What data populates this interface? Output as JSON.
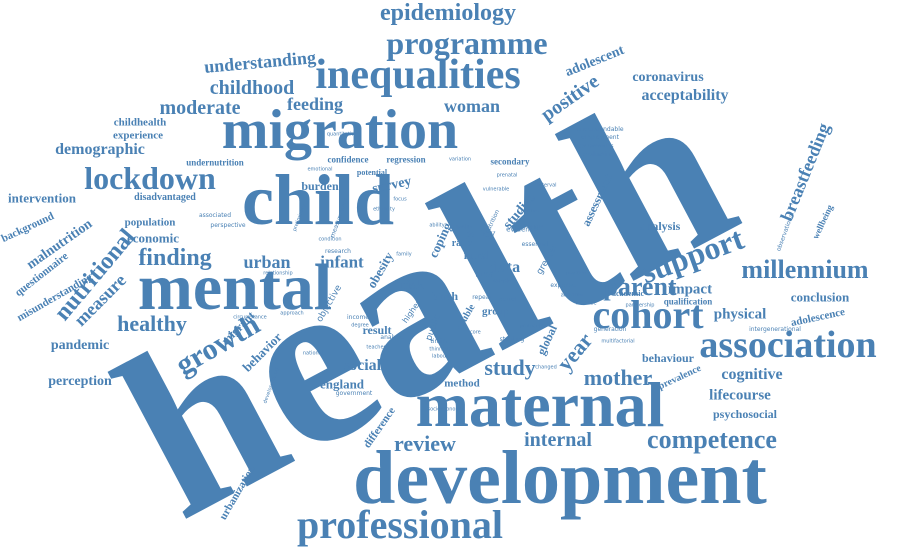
{
  "color": "#4a81b4",
  "words": [
    {
      "text": "health",
      "orient": "rotated"
    },
    {
      "text": "development",
      "orient": "horizontal"
    },
    {
      "text": "maternal",
      "orient": "horizontal"
    },
    {
      "text": "mental",
      "orient": "horizontal"
    },
    {
      "text": "child",
      "orient": "horizontal"
    },
    {
      "text": "migration",
      "orient": "horizontal"
    },
    {
      "text": "inequalities",
      "orient": "horizontal"
    },
    {
      "text": "programme",
      "orient": "horizontal"
    },
    {
      "text": "epidemiology",
      "orient": "horizontal"
    },
    {
      "text": "professional",
      "orient": "horizontal"
    },
    {
      "text": "association",
      "orient": "horizontal"
    },
    {
      "text": "competence",
      "orient": "horizontal"
    },
    {
      "text": "cohort",
      "orient": "horizontal"
    },
    {
      "text": "lockdown",
      "orient": "horizontal"
    },
    {
      "text": "support",
      "orient": "rotated"
    },
    {
      "text": "millennium",
      "orient": "horizontal"
    },
    {
      "text": "growth",
      "orient": "rotated"
    },
    {
      "text": "nutritional",
      "orient": "rotated"
    },
    {
      "text": "finding",
      "orient": "horizontal"
    },
    {
      "text": "healthy",
      "orient": "horizontal"
    },
    {
      "text": "mother",
      "orient": "horizontal"
    },
    {
      "text": "study",
      "orient": "horizontal"
    },
    {
      "text": "review",
      "orient": "horizontal"
    },
    {
      "text": "internal",
      "orient": "horizontal"
    },
    {
      "text": "parent",
      "orient": "horizontal"
    },
    {
      "text": "year",
      "orient": "rotated"
    },
    {
      "text": "childhood",
      "orient": "horizontal"
    },
    {
      "text": "understanding",
      "orient": "horizontal"
    },
    {
      "text": "moderate",
      "orient": "horizontal"
    },
    {
      "text": "feeding",
      "orient": "horizontal"
    },
    {
      "text": "woman",
      "orient": "horizontal"
    },
    {
      "text": "positive",
      "orient": "rotated"
    },
    {
      "text": "adolescent",
      "orient": "rotated"
    },
    {
      "text": "coronavirus",
      "orient": "horizontal"
    },
    {
      "text": "acceptability",
      "orient": "horizontal"
    },
    {
      "text": "breastfeeding",
      "orient": "rotated"
    },
    {
      "text": "demographic",
      "orient": "horizontal"
    },
    {
      "text": "childhealth",
      "orient": "horizontal"
    },
    {
      "text": "experience",
      "orient": "horizontal"
    },
    {
      "text": "intervention",
      "orient": "horizontal"
    },
    {
      "text": "background",
      "orient": "rotated"
    },
    {
      "text": "malnutrition",
      "orient": "rotated"
    },
    {
      "text": "questionnaire",
      "orient": "rotated"
    },
    {
      "text": "misunderstanding",
      "orient": "rotated"
    },
    {
      "text": "measure",
      "orient": "rotated"
    },
    {
      "text": "pandemic",
      "orient": "horizontal"
    },
    {
      "text": "perception",
      "orient": "horizontal"
    },
    {
      "text": "economic",
      "orient": "horizontal"
    },
    {
      "text": "population",
      "orient": "horizontal"
    },
    {
      "text": "disadvantaged",
      "orient": "horizontal"
    },
    {
      "text": "undernutrition",
      "orient": "horizontal"
    },
    {
      "text": "urban",
      "orient": "horizontal"
    },
    {
      "text": "infant",
      "orient": "horizontal"
    },
    {
      "text": "data",
      "orient": "horizontal"
    },
    {
      "text": "survey",
      "orient": "horizontal"
    },
    {
      "text": "burden",
      "orient": "horizontal"
    },
    {
      "text": "confidence",
      "orient": "horizontal"
    },
    {
      "text": "regression",
      "orient": "horizontal"
    },
    {
      "text": "potential",
      "orient": "horizontal"
    },
    {
      "text": "coping",
      "orient": "rotated"
    },
    {
      "text": "policy",
      "orient": "horizontal"
    },
    {
      "text": "rural",
      "orient": "horizontal"
    },
    {
      "text": "ratio",
      "orient": "horizontal"
    },
    {
      "text": "risk",
      "orient": "horizontal"
    },
    {
      "text": "birth",
      "orient": "horizontal"
    },
    {
      "text": "area",
      "orient": "horizontal"
    },
    {
      "text": "obesity",
      "orient": "rotated"
    },
    {
      "text": "studies",
      "orient": "rotated"
    },
    {
      "text": "secondary",
      "orient": "horizontal"
    },
    {
      "text": "assessment",
      "orient": "rotated"
    },
    {
      "text": "analysis",
      "orient": "horizontal"
    },
    {
      "text": "impact",
      "orient": "horizontal"
    },
    {
      "text": "physical",
      "orient": "horizontal"
    },
    {
      "text": "conclusion",
      "orient": "horizontal"
    },
    {
      "text": "adolescence",
      "orient": "rotated"
    },
    {
      "text": "behaviour",
      "orient": "horizontal"
    },
    {
      "text": "cognitive",
      "orient": "horizontal"
    },
    {
      "text": "lifecourse",
      "orient": "horizontal"
    },
    {
      "text": "psychosocial",
      "orient": "horizontal"
    },
    {
      "text": "prevalence",
      "orient": "rotated"
    },
    {
      "text": "wellbeing",
      "orient": "rotated"
    },
    {
      "text": "qualification",
      "orient": "horizontal"
    },
    {
      "text": "academic",
      "orient": "horizontal"
    },
    {
      "text": "social",
      "orient": "horizontal"
    },
    {
      "text": "england",
      "orient": "horizontal"
    },
    {
      "text": "result",
      "orient": "horizontal"
    },
    {
      "text": "method",
      "orient": "horizontal"
    },
    {
      "text": "global",
      "orient": "rotated"
    },
    {
      "text": "difference",
      "orient": "rotated"
    },
    {
      "text": "urbanization",
      "orient": "rotated"
    },
    {
      "text": "migrant",
      "orient": "rotated"
    },
    {
      "text": "behavior",
      "orient": "rotated"
    },
    {
      "text": "group",
      "orient": "horizontal"
    },
    {
      "text": "double",
      "orient": "rotated"
    },
    {
      "text": "evidence",
      "orient": "horizontal"
    },
    {
      "text": "essential",
      "orient": "horizontal"
    },
    {
      "text": "greater",
      "orient": "rotated"
    },
    {
      "text": "generation",
      "orient": "horizontal"
    },
    {
      "text": "intergenerational",
      "orient": "horizontal"
    },
    {
      "text": "understandable",
      "orient": "horizontal"
    },
    {
      "text": "employment",
      "orient": "horizontal"
    },
    {
      "text": "evaluating",
      "orient": "horizontal"
    },
    {
      "text": "competencies",
      "orient": "horizontal"
    },
    {
      "text": "emotional",
      "orient": "horizontal"
    },
    {
      "text": "perspective",
      "orient": "horizontal"
    },
    {
      "text": "associated",
      "orient": "horizontal"
    },
    {
      "text": "measurement",
      "orient": "rotated"
    },
    {
      "text": "research",
      "orient": "horizontal"
    },
    {
      "text": "income",
      "orient": "horizontal"
    },
    {
      "text": "degree",
      "orient": "horizontal"
    },
    {
      "text": "analyse",
      "orient": "horizontal"
    },
    {
      "text": "timing",
      "orient": "horizontal"
    },
    {
      "text": "stunting",
      "orient": "horizontal"
    },
    {
      "text": "government",
      "orient": "horizontal"
    },
    {
      "text": "national",
      "orient": "horizontal"
    },
    {
      "text": "observational",
      "orient": "rotated"
    },
    {
      "text": "expense",
      "orient": "horizontal"
    },
    {
      "text": "partner",
      "orient": "horizontal"
    },
    {
      "text": "quantitative",
      "orient": "horizontal"
    },
    {
      "text": "variation",
      "orient": "horizontal"
    },
    {
      "text": "prenatal",
      "orient": "horizontal"
    },
    {
      "text": "repeat",
      "orient": "horizontal"
    },
    {
      "text": "better",
      "orient": "horizontal"
    },
    {
      "text": "score",
      "orient": "horizontal"
    },
    {
      "text": "nutrition",
      "orient": "rotated"
    },
    {
      "text": "interval",
      "orient": "horizontal"
    },
    {
      "text": "public",
      "orient": "rotated"
    },
    {
      "text": "higher",
      "orient": "rotated"
    },
    {
      "text": "condition",
      "orient": "horizontal"
    },
    {
      "text": "focus",
      "orient": "horizontal"
    },
    {
      "text": "weight",
      "orient": "horizontal"
    },
    {
      "text": "socioeconomic",
      "orient": "horizontal"
    },
    {
      "text": "developmental",
      "orient": "rotated"
    },
    {
      "text": "ethnicity",
      "orient": "horizontal"
    },
    {
      "text": "preliminary",
      "orient": "rotated"
    },
    {
      "text": "relationship",
      "orient": "horizontal"
    },
    {
      "text": "activities",
      "orient": "horizontal"
    },
    {
      "text": "partnership",
      "orient": "horizontal"
    },
    {
      "text": "multifactorial",
      "orient": "horizontal"
    },
    {
      "text": "changed",
      "orient": "horizontal"
    },
    {
      "text": "teacher",
      "orient": "horizontal"
    },
    {
      "text": "thinness",
      "orient": "horizontal"
    },
    {
      "text": "labour",
      "orient": "horizontal"
    },
    {
      "text": "circumstance",
      "orient": "horizontal"
    },
    {
      "text": "approach",
      "orient": "horizontal"
    },
    {
      "text": "increase",
      "orient": "horizontal"
    },
    {
      "text": "practice",
      "orient": "horizontal"
    },
    {
      "text": "ability",
      "orient": "horizontal"
    },
    {
      "text": "quality",
      "orient": "horizontal"
    },
    {
      "text": "protocol",
      "orient": "horizontal"
    },
    {
      "text": "sample",
      "orient": "horizontal"
    },
    {
      "text": "family",
      "orient": "horizontal"
    },
    {
      "text": "vulnerable",
      "orient": "horizontal"
    },
    {
      "text": "objective",
      "orient": "rotated"
    }
  ]
}
